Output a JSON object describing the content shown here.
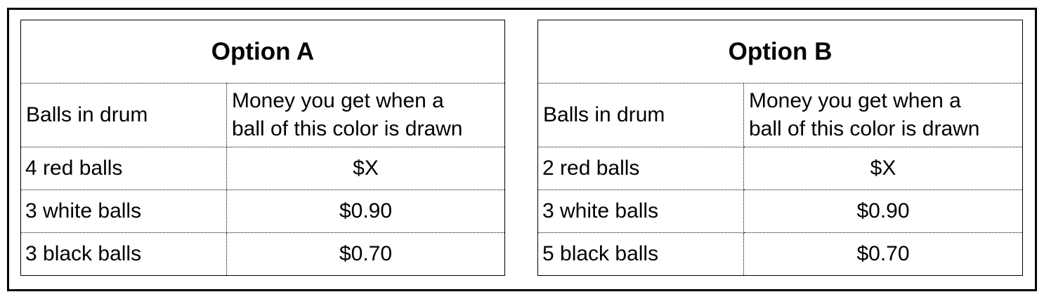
{
  "options": [
    {
      "title": "Option A",
      "header": {
        "balls": "Balls in drum",
        "money_line1": "Money you get when a",
        "money_line2": "ball of this color is drawn"
      },
      "rows": [
        {
          "balls": "4 red balls",
          "money": "$X"
        },
        {
          "balls": "3 white balls",
          "money": "$0.90"
        },
        {
          "balls": "3 black balls",
          "money": "$0.70"
        }
      ]
    },
    {
      "title": "Option B",
      "header": {
        "balls": "Balls in drum",
        "money_line1": "Money you get when a",
        "money_line2": "ball of this color is drawn"
      },
      "rows": [
        {
          "balls": "2 red balls",
          "money": "$X"
        },
        {
          "balls": "3 white balls",
          "money": "$0.90"
        },
        {
          "balls": "5 black balls",
          "money": "$0.70"
        }
      ]
    }
  ]
}
